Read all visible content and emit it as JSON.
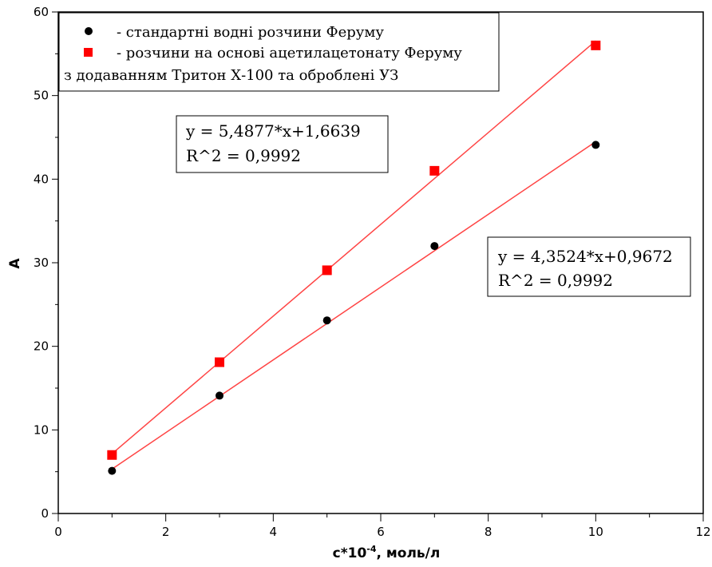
{
  "chart_data": {
    "type": "scatter",
    "xlabel": "c*10",
    "xlabel_exp": "-4",
    "xlabel_units": ", моль/л",
    "ylabel": "A",
    "xlim": [
      0,
      12
    ],
    "ylim": [
      0,
      60
    ],
    "xticks": [
      0,
      2,
      4,
      6,
      8,
      10,
      12
    ],
    "yticks": [
      0,
      10,
      20,
      30,
      40,
      50,
      60
    ],
    "grid": false,
    "legend_position": "top-left",
    "legend": {
      "line1": "- стандартні водні розчини Феруму",
      "line2": "- розчини на основі ацетилацетонату Феруму",
      "line3": "з додаванням Тритон Х-100 та оброблені УЗ"
    },
    "series": [
      {
        "marker": "circle",
        "color": "#000000",
        "x": [
          1,
          3,
          5,
          7,
          10
        ],
        "y": [
          5.1,
          14.1,
          23.1,
          32.0,
          44.1
        ],
        "fit": {
          "slope": 4.3524,
          "intercept": 0.9672,
          "color": "#ff4444"
        },
        "equation": "y = 4,3524*x+0,9672",
        "r2": "R^2 = 0,9992"
      },
      {
        "marker": "square",
        "color": "#ff0000",
        "x": [
          1,
          3,
          5,
          7,
          10
        ],
        "y": [
          7.0,
          18.1,
          29.1,
          41.0,
          56.0
        ],
        "fit": {
          "slope": 5.4877,
          "intercept": 1.6639,
          "color": "#ff4444"
        },
        "equation": "y = 5,4877*x+1,6639",
        "r2": "R^2 = 0,9992"
      }
    ]
  }
}
